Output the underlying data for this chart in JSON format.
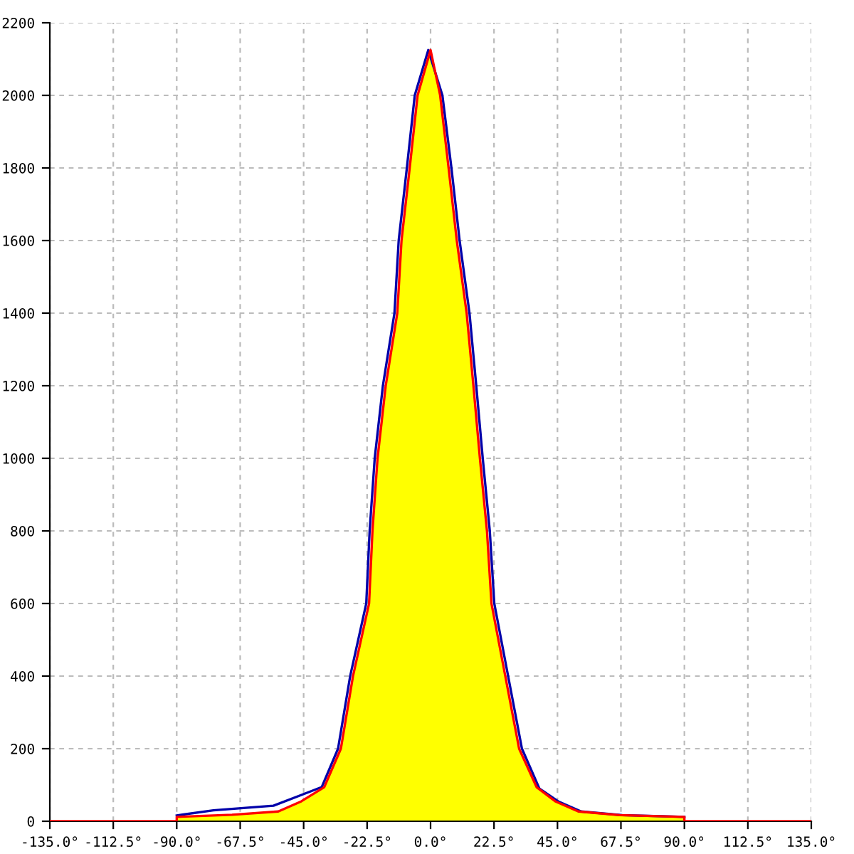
{
  "chart_data": {
    "type": "line",
    "series": [
      {
        "type": "area",
        "color": "#ffff00",
        "x": [
          -90,
          -70.4,
          -54,
          -45.8,
          -37.7,
          -31.8,
          -27.5,
          -21.8,
          -20.6,
          -18.8,
          -15.9,
          -11.8,
          -10.3,
          -7.4,
          -4.6,
          0,
          3.4,
          6.4,
          9.3,
          12.8,
          15.2,
          17.5,
          20,
          21.6,
          26.5,
          31.4,
          37.6,
          44.2,
          52.4,
          67,
          90
        ],
        "values": [
          12,
          18,
          27,
          55,
          94,
          200,
          400,
          600,
          800,
          1000,
          1200,
          1400,
          1600,
          1800,
          2000,
          2125,
          2000,
          1800,
          1600,
          1400,
          1200,
          1000,
          800,
          600,
          400,
          200,
          94,
          55,
          27,
          17,
          12
        ]
      },
      {
        "type": "line",
        "color": "#0000aa",
        "x": [
          -90,
          -77,
          -55.7,
          -46.6,
          -38.6,
          -32.8,
          -28.5,
          -22.8,
          -21.6,
          -19.8,
          -16.9,
          -12.8,
          -11.3,
          -8.4,
          -5.6,
          -0.8,
          4.2,
          7.4,
          10.3,
          13.8,
          16.2,
          18.5,
          21,
          22.6,
          27.5,
          32.4,
          38.6,
          45.2,
          53.4,
          68,
          90
        ],
        "values": [
          16,
          30,
          43,
          70,
          94,
          200,
          400,
          600,
          800,
          1000,
          1200,
          1400,
          1600,
          1800,
          2000,
          2125,
          2000,
          1800,
          1600,
          1400,
          1200,
          1000,
          800,
          600,
          400,
          200,
          90,
          55,
          27,
          17,
          12
        ]
      },
      {
        "color": "#ff0000",
        "x": [
          -135,
          -90,
          -90,
          -70.4,
          -54,
          -45.8,
          -37.7,
          -31.8,
          -27.5,
          -21.8,
          -20.6,
          -18.8,
          -15.9,
          -11.8,
          -10.3,
          -7.4,
          -4.6,
          0,
          3.4,
          6.4,
          9.3,
          12.8,
          15.2,
          17.5,
          20,
          21.6,
          26.5,
          31.4,
          37.6,
          44.2,
          52.4,
          67,
          90,
          90,
          135
        ],
        "values": [
          0,
          0,
          12,
          18,
          27,
          55,
          94,
          200,
          400,
          600,
          800,
          1000,
          1200,
          1400,
          1600,
          1800,
          2000,
          2125,
          2000,
          1800,
          1600,
          1400,
          1200,
          1000,
          800,
          600,
          400,
          200,
          94,
          55,
          27,
          17,
          12,
          0,
          0
        ]
      }
    ],
    "xlim": [
      -135,
      135
    ],
    "xticks": [
      {
        "value": -135,
        "label": "-135.0°"
      },
      {
        "value": -112.5,
        "label": "-112.5°"
      },
      {
        "value": -90,
        "label": "-90.0°"
      },
      {
        "value": -67.5,
        "label": "-67.5°"
      },
      {
        "value": -45,
        "label": "-45.0°"
      },
      {
        "value": -22.5,
        "label": "-22.5°"
      },
      {
        "value": 0,
        "label": "0.0°"
      },
      {
        "value": 22.5,
        "label": "22.5°"
      },
      {
        "value": 45,
        "label": "45.0°"
      },
      {
        "value": 67.5,
        "label": "67.5°"
      },
      {
        "value": 90,
        "label": "90.0°"
      },
      {
        "value": 112.5,
        "label": "112.5°"
      },
      {
        "value": 135,
        "label": "135.0°"
      }
    ],
    "ylim": [
      0,
      2200
    ],
    "yticks": [
      0,
      200,
      400,
      600,
      800,
      1000,
      1200,
      1400,
      1600,
      1800,
      2000,
      2200
    ],
    "grid": true,
    "line_style": "solid"
  }
}
